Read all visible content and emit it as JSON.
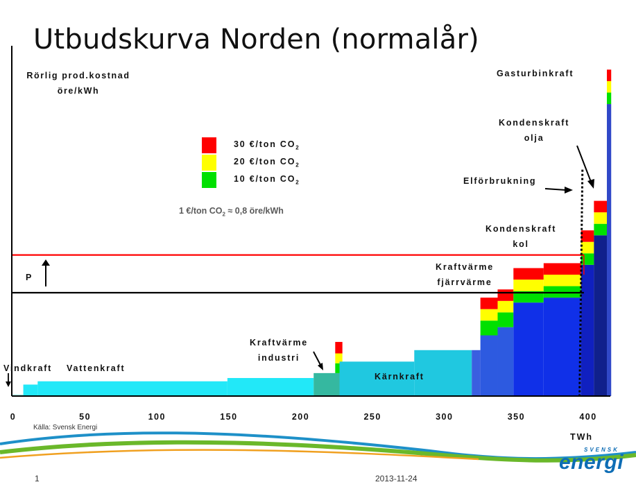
{
  "slide": {
    "title": "Utbudskurva Norden (normalår)",
    "source": "Källa: Svensk Energi",
    "page_number": "1",
    "date": "2013-11-24",
    "logo": {
      "small": "SVENSK",
      "main": "energi"
    }
  },
  "legend": {
    "items": [
      {
        "label": "30  €/ton CO",
        "sub": "2",
        "color": "#ff0000"
      },
      {
        "label": "20  €/ton CO",
        "sub": "2",
        "color": "#ffff00"
      },
      {
        "label": "10  €/ton CO",
        "sub": "2",
        "color": "#00e000"
      }
    ],
    "conversion_a": "1 €/ton CO",
    "conversion_sub": "2",
    "conversion_b": " ≈ 0,8 öre/kWh"
  },
  "labels": {
    "ylabel_line1": "Rörlig prod.kostnad",
    "ylabel_line2": "öre/kWh",
    "gasturbin": "Gasturbinkraft",
    "kondens_olja_1": "Kondenskraft",
    "kondens_olja_2": "olja",
    "elforbrukning": "Elförbrukning",
    "kondens_kol_1": "Kondenskraft",
    "kondens_kol_2": "kol",
    "kv_fjarr_1": "Kraftvärme",
    "kv_fjarr_2": "fjärrvärme",
    "kv_ind_1": "Kraftvärme",
    "kv_ind_2": "industri",
    "vindkraft": "Vindkraft",
    "vattenkraft": "Vattenkraft",
    "karnkraft": "Kärnkraft",
    "p": "P",
    "xunit": "TWh"
  },
  "chart_data": {
    "type": "bar",
    "title": "Utbudskurva Norden (normalår)",
    "xlabel": "TWh",
    "ylabel": "Rörlig prod.kostnad öre/kWh",
    "xlim": [
      0,
      420
    ],
    "ylim": [
      0,
      100
    ],
    "x_ticks": [
      0,
      50,
      100,
      150,
      200,
      250,
      300,
      350,
      400
    ],
    "grid": false,
    "y_ticks_shown": false,
    "segments": [
      {
        "name": "Vindkraft",
        "x0": 0,
        "x1": 8,
        "y": 0.5,
        "color": "#b2f0e8"
      },
      {
        "name": "Vattenkraft",
        "x0": 8,
        "x1": 18,
        "y": 3.5,
        "color": "#22e8f8"
      },
      {
        "name": "Vattenkraft",
        "x0": 18,
        "x1": 150,
        "y": 4.5,
        "color": "#22e8f8"
      },
      {
        "name": "Vattenkraft",
        "x0": 150,
        "x1": 210,
        "y": 5.5,
        "color": "#22e8f8"
      },
      {
        "name": "Kraftvärme industri",
        "x0": 210,
        "x1": 228,
        "y": 7,
        "color": "#35b8a0"
      },
      {
        "name": "Kraftvärme industri (CO2-tillägg)",
        "x0": 225,
        "x1": 230,
        "y": 7,
        "color": "#35b8a0",
        "co2": [
          3,
          3,
          3.5
        ]
      },
      {
        "name": "Kärnkraft",
        "x0": 228,
        "x1": 280,
        "y": 10.5,
        "color": "#20c8e0"
      },
      {
        "name": "Kärnkraft",
        "x0": 280,
        "x1": 320,
        "y": 14,
        "color": "#20c8e0"
      },
      {
        "name": "Kraftvärme fjärrvärme",
        "x0": 320,
        "x1": 326,
        "y": 14,
        "color": "#3a5fe0"
      },
      {
        "name": "Kraftvärme fjärrvärme",
        "x0": 326,
        "x1": 338,
        "y": 18.5,
        "color": "#2d5ae0",
        "co2": [
          4.5,
          3.5,
          3.5
        ]
      },
      {
        "name": "Kraftvärme fjärrvärme",
        "x0": 338,
        "x1": 349,
        "y": 21,
        "color": "#2d5ae0",
        "co2": [
          4.5,
          3.5,
          3.5
        ]
      },
      {
        "name": "Kraftvärme fjärrvärme",
        "x0": 349,
        "x1": 370,
        "y": 28.5,
        "color": "#1030e8",
        "co2": [
          3.5,
          3.5,
          3.5
        ]
      },
      {
        "name": "Kraftvärme fjärrvärme",
        "x0": 370,
        "x1": 396,
        "y": 30,
        "color": "#1030e8",
        "co2": [
          3.5,
          3.5,
          3.5
        ]
      },
      {
        "name": "Kondenskraft kol",
        "x0": 396,
        "x1": 405,
        "y": 40,
        "color": "#1020c0",
        "co2": [
          3.5,
          3.5,
          3.5
        ]
      },
      {
        "name": "Kondenskraft olja",
        "x0": 405,
        "x1": 414,
        "y": 49,
        "color": "#10208c",
        "co2": [
          3.5,
          3.5,
          3.5
        ]
      },
      {
        "name": "Gasturbinkraft",
        "x0": 414,
        "x1": 417,
        "y": 89,
        "color": "#3048c8",
        "co2": [
          3.5,
          3.5,
          3.5
        ]
      }
    ],
    "price_lines": [
      {
        "name": "P (high)",
        "y": 43,
        "color": "#ff0000"
      },
      {
        "name": "P (low)",
        "y": 31.5,
        "color": "#000000"
      }
    ],
    "demand_line": {
      "name": "Elförbrukning",
      "x": [
        395,
        397
      ],
      "y": [
        0,
        69
      ],
      "style": "dotted"
    }
  }
}
